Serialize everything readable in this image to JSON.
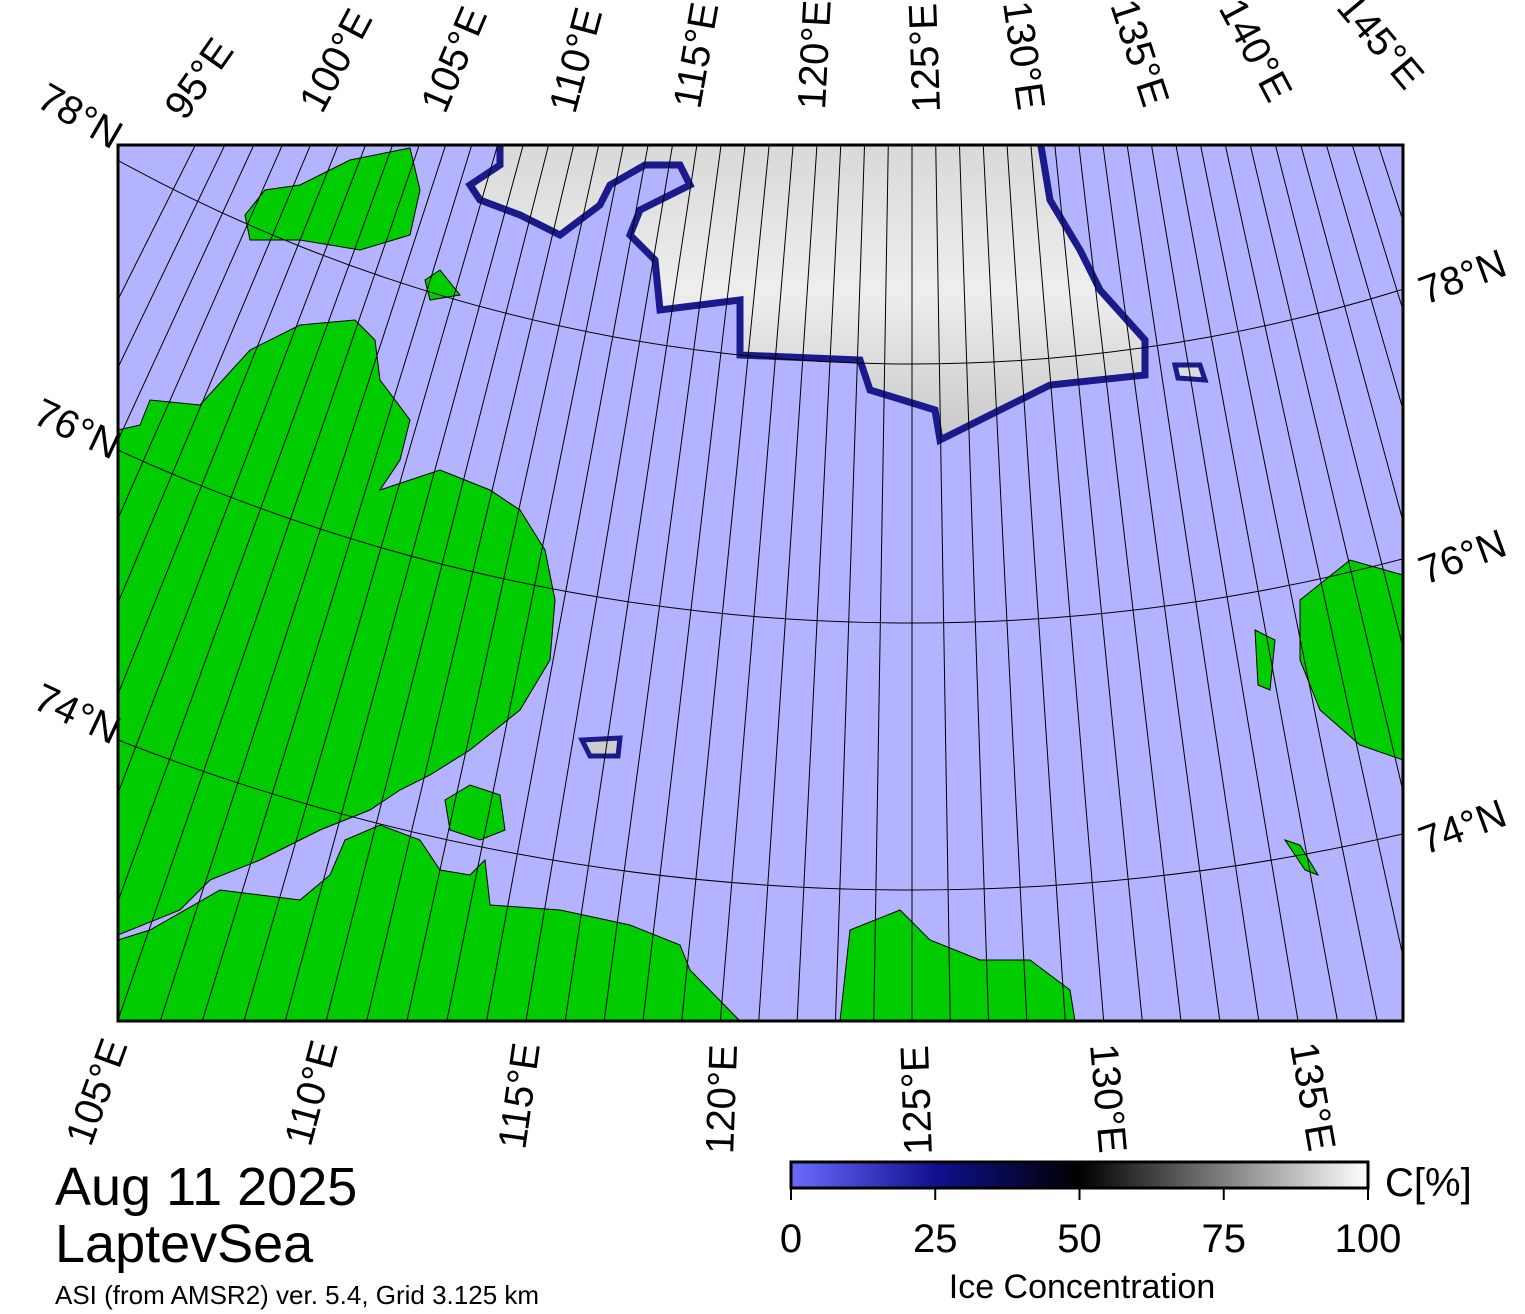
{
  "map": {
    "title": "Aug 11 2025",
    "region": "LaptevSea",
    "source": "ASI (from AMSR2) ver. 5.4,  Grid 3.125 km",
    "top_labels": [
      "78°N",
      "95°E",
      "100°E",
      "105°E",
      "110°E",
      "115°E",
      "120°E",
      "125°E",
      "130°E",
      "135°E",
      "140°E",
      "145°E"
    ],
    "left_labels": [
      "76°N",
      "74°N"
    ],
    "right_labels": [
      "78°N",
      "76°N",
      "74°N"
    ],
    "bottom_labels": [
      "105°E",
      "110°E",
      "115°E",
      "120°E",
      "125°E",
      "130°E",
      "135°E"
    ],
    "colorbar": {
      "lim": [
        0,
        100
      ],
      "ticks": [
        0,
        25,
        50,
        75,
        100
      ],
      "unit": "C[%]",
      "label": "Ice Concentration"
    }
  }
}
